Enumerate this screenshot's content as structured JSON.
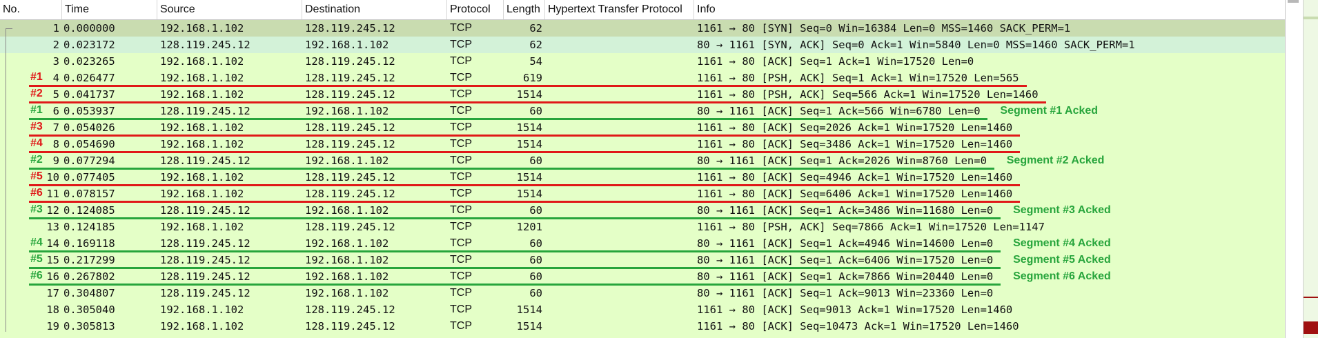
{
  "columns": {
    "no": "No.",
    "time": "Time",
    "source": "Source",
    "destination": "Destination",
    "protocol": "Protocol",
    "length": "Length",
    "http": "Hypertext Transfer Protocol",
    "info": "Info"
  },
  "packets": [
    {
      "no": "1",
      "time": "0.000000",
      "src": "192.168.1.102",
      "dst": "128.119.245.12",
      "proto": "TCP",
      "len": "62",
      "info": "1161 → 80 [SYN] Seq=0 Win=16384 Len=0 MSS=1460 SACK_PERM=1"
    },
    {
      "no": "2",
      "time": "0.023172",
      "src": "128.119.245.12",
      "dst": "192.168.1.102",
      "proto": "TCP",
      "len": "62",
      "info": "80 → 1161 [SYN, ACK] Seq=0 Ack=1 Win=5840 Len=0 MSS=1460 SACK_PERM=1"
    },
    {
      "no": "3",
      "time": "0.023265",
      "src": "192.168.1.102",
      "dst": "128.119.245.12",
      "proto": "TCP",
      "len": "54",
      "info": "1161 → 80 [ACK] Seq=1 Ack=1 Win=17520 Len=0"
    },
    {
      "no": "4",
      "time": "0.026477",
      "src": "192.168.1.102",
      "dst": "128.119.245.12",
      "proto": "TCP",
      "len": "619",
      "info": "1161 → 80 [PSH, ACK] Seq=1 Ack=1 Win=17520 Len=565"
    },
    {
      "no": "5",
      "time": "0.041737",
      "src": "192.168.1.102",
      "dst": "128.119.245.12",
      "proto": "TCP",
      "len": "1514",
      "info": "1161 → 80 [PSH, ACK] Seq=566 Ack=1 Win=17520 Len=1460"
    },
    {
      "no": "6",
      "time": "0.053937",
      "src": "128.119.245.12",
      "dst": "192.168.1.102",
      "proto": "TCP",
      "len": "60",
      "info": "80 → 1161 [ACK] Seq=1 Ack=566 Win=6780 Len=0"
    },
    {
      "no": "7",
      "time": "0.054026",
      "src": "192.168.1.102",
      "dst": "128.119.245.12",
      "proto": "TCP",
      "len": "1514",
      "info": "1161 → 80 [ACK] Seq=2026 Ack=1 Win=17520 Len=1460"
    },
    {
      "no": "8",
      "time": "0.054690",
      "src": "192.168.1.102",
      "dst": "128.119.245.12",
      "proto": "TCP",
      "len": "1514",
      "info": "1161 → 80 [ACK] Seq=3486 Ack=1 Win=17520 Len=1460"
    },
    {
      "no": "9",
      "time": "0.077294",
      "src": "128.119.245.12",
      "dst": "192.168.1.102",
      "proto": "TCP",
      "len": "60",
      "info": "80 → 1161 [ACK] Seq=1 Ack=2026 Win=8760 Len=0"
    },
    {
      "no": "10",
      "time": "0.077405",
      "src": "192.168.1.102",
      "dst": "128.119.245.12",
      "proto": "TCP",
      "len": "1514",
      "info": "1161 → 80 [ACK] Seq=4946 Ack=1 Win=17520 Len=1460"
    },
    {
      "no": "11",
      "time": "0.078157",
      "src": "192.168.1.102",
      "dst": "128.119.245.12",
      "proto": "TCP",
      "len": "1514",
      "info": "1161 → 80 [ACK] Seq=6406 Ack=1 Win=17520 Len=1460"
    },
    {
      "no": "12",
      "time": "0.124085",
      "src": "128.119.245.12",
      "dst": "192.168.1.102",
      "proto": "TCP",
      "len": "60",
      "info": "80 → 1161 [ACK] Seq=1 Ack=3486 Win=11680 Len=0"
    },
    {
      "no": "13",
      "time": "0.124185",
      "src": "192.168.1.102",
      "dst": "128.119.245.12",
      "proto": "TCP",
      "len": "1201",
      "info": "1161 → 80 [PSH, ACK] Seq=7866 Ack=1 Win=17520 Len=1147"
    },
    {
      "no": "14",
      "time": "0.169118",
      "src": "128.119.245.12",
      "dst": "192.168.1.102",
      "proto": "TCP",
      "len": "60",
      "info": "80 → 1161 [ACK] Seq=1 Ack=4946 Win=14600 Len=0"
    },
    {
      "no": "15",
      "time": "0.217299",
      "src": "128.119.245.12",
      "dst": "192.168.1.102",
      "proto": "TCP",
      "len": "60",
      "info": "80 → 1161 [ACK] Seq=1 Ack=6406 Win=17520 Len=0"
    },
    {
      "no": "16",
      "time": "0.267802",
      "src": "128.119.245.12",
      "dst": "192.168.1.102",
      "proto": "TCP",
      "len": "60",
      "info": "80 → 1161 [ACK] Seq=1 Ack=7866 Win=20440 Len=0"
    },
    {
      "no": "17",
      "time": "0.304807",
      "src": "128.119.245.12",
      "dst": "192.168.1.102",
      "proto": "TCP",
      "len": "60",
      "info": "80 → 1161 [ACK] Seq=1 Ack=9013 Win=23360 Len=0"
    },
    {
      "no": "18",
      "time": "0.305040",
      "src": "192.168.1.102",
      "dst": "128.119.245.12",
      "proto": "TCP",
      "len": "1514",
      "info": "1161 → 80 [ACK] Seq=9013 Ack=1 Win=17520 Len=1460"
    },
    {
      "no": "19",
      "time": "0.305813",
      "src": "192.168.1.102",
      "dst": "128.119.245.12",
      "proto": "TCP",
      "len": "1514",
      "info": "1161 → 80 [ACK] Seq=10473 Ack=1 Win=17520 Len=1460"
    }
  ],
  "annotations": {
    "marks": [
      {
        "row": 4,
        "text": "#1",
        "color": "red"
      },
      {
        "row": 5,
        "text": "#2",
        "color": "red"
      },
      {
        "row": 6,
        "text": "#1",
        "color": "green"
      },
      {
        "row": 7,
        "text": "#3",
        "color": "red"
      },
      {
        "row": 8,
        "text": "#4",
        "color": "red"
      },
      {
        "row": 9,
        "text": "#2",
        "color": "green"
      },
      {
        "row": 10,
        "text": "#5",
        "color": "red"
      },
      {
        "row": 11,
        "text": "#6",
        "color": "red"
      },
      {
        "row": 12,
        "text": "#3",
        "color": "green"
      },
      {
        "row": 14,
        "text": "#4",
        "color": "green"
      },
      {
        "row": 15,
        "text": "#5",
        "color": "green"
      },
      {
        "row": 16,
        "text": "#6",
        "color": "green"
      }
    ],
    "acked_notes": [
      {
        "row": 6,
        "text": "Segment #1 Acked"
      },
      {
        "row": 9,
        "text": "Segment #2 Acked"
      },
      {
        "row": 12,
        "text": "Segment #3 Acked"
      },
      {
        "row": 14,
        "text": "Segment #4 Acked"
      },
      {
        "row": 15,
        "text": "Segment #5 Acked"
      },
      {
        "row": 16,
        "text": "Segment #6 Acked"
      }
    ]
  },
  "selected_packet": "1",
  "related_packet": "2",
  "colors": {
    "row_bg": "#e4ffc7",
    "selected_bg": "#c9dcb0",
    "related_bg": "#d3f2d8",
    "red": "#e01818",
    "green": "#27a53c",
    "minimap_mark": "#a01010"
  }
}
